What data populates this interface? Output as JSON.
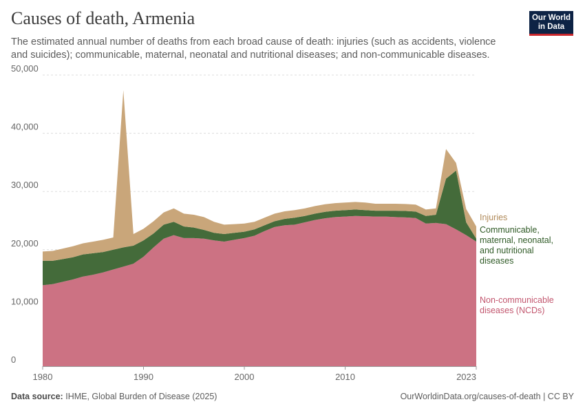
{
  "header": {
    "title": "Causes of death, Armenia",
    "subtitle": "The estimated annual number of deaths from each broad cause of death: injuries (such as accidents, violence and suicides); communicable, maternal, neonatal and nutritional diseases; and non-communicable diseases.",
    "logo_line1": "Our World",
    "logo_line2": "in Data"
  },
  "footer": {
    "source_label": "Data source:",
    "source_text": "IHME, Global Burden of Disease (2025)",
    "url_text": "OurWorldinData.org/causes-of-death | CC BY"
  },
  "colors": {
    "ncd": "#cc7283",
    "communicable": "#446b3a",
    "injuries": "#c9a67a",
    "ncd_label": "#c2566e",
    "communicable_label": "#2f5a26",
    "injuries_label": "#b08a5a"
  },
  "chart_data": {
    "type": "area",
    "stacked": true,
    "title": "Causes of death, Armenia",
    "xlabel": "",
    "ylabel": "",
    "xlim": [
      1980,
      2023
    ],
    "ylim": [
      0,
      50000
    ],
    "x_ticks": [
      1980,
      1990,
      2000,
      2010,
      2023
    ],
    "y_ticks": [
      0,
      10000,
      20000,
      30000,
      40000,
      50000
    ],
    "y_tick_labels": [
      "0",
      "10,000",
      "20,000",
      "30,000",
      "40,000",
      "50,000"
    ],
    "x": [
      1980,
      1981,
      1982,
      1983,
      1984,
      1985,
      1986,
      1987,
      1988,
      1989,
      1990,
      1991,
      1992,
      1993,
      1994,
      1995,
      1996,
      1997,
      1998,
      1999,
      2000,
      2001,
      2002,
      2003,
      2004,
      2005,
      2006,
      2007,
      2008,
      2009,
      2010,
      2011,
      2012,
      2013,
      2014,
      2015,
      2016,
      2017,
      2018,
      2019,
      2020,
      2021,
      2022,
      2023
    ],
    "series": [
      {
        "name": "Non-communicable diseases (NCDs)",
        "legend_lines": [
          "Non-communicable",
          "diseases (NCDs)"
        ],
        "values": [
          13900,
          14100,
          14500,
          14900,
          15400,
          15700,
          16100,
          16600,
          17100,
          17600,
          18800,
          20400,
          21900,
          22500,
          22000,
          22000,
          21900,
          21600,
          21400,
          21700,
          22000,
          22400,
          23200,
          23900,
          24200,
          24300,
          24700,
          25100,
          25400,
          25600,
          25700,
          25800,
          25750,
          25700,
          25700,
          25600,
          25550,
          25450,
          24500,
          24600,
          24400,
          23500,
          22500,
          21400
        ]
      },
      {
        "name": "Communicable, maternal, neonatal, and nutritional diseases",
        "legend_lines": [
          "Communicable,",
          "maternal, neonatal,",
          "and nutritional",
          "diseases"
        ],
        "values": [
          4200,
          4000,
          3900,
          3800,
          3800,
          3700,
          3500,
          3400,
          3300,
          3100,
          2800,
          2400,
          2400,
          2300,
          2000,
          1800,
          1500,
          1300,
          1300,
          1200,
          1100,
          1100,
          1000,
          1000,
          1100,
          1200,
          1100,
          1100,
          1100,
          1100,
          1100,
          1100,
          1050,
          1000,
          1000,
          1100,
          1100,
          1100,
          1300,
          1400,
          7800,
          10100,
          2200,
          500
        ]
      },
      {
        "name": "Injuries",
        "legend_lines": [
          "Injuries"
        ],
        "values": [
          1600,
          1700,
          1800,
          1900,
          1900,
          2000,
          2100,
          2100,
          27000,
          2000,
          2000,
          2100,
          2100,
          2300,
          2200,
          2200,
          2200,
          1900,
          1600,
          1500,
          1400,
          1300,
          1300,
          1300,
          1300,
          1300,
          1300,
          1300,
          1300,
          1300,
          1300,
          1300,
          1300,
          1200,
          1200,
          1200,
          1200,
          1200,
          1100,
          1100,
          5100,
          1300,
          2300,
          2100
        ]
      }
    ],
    "legend_position": "right"
  }
}
